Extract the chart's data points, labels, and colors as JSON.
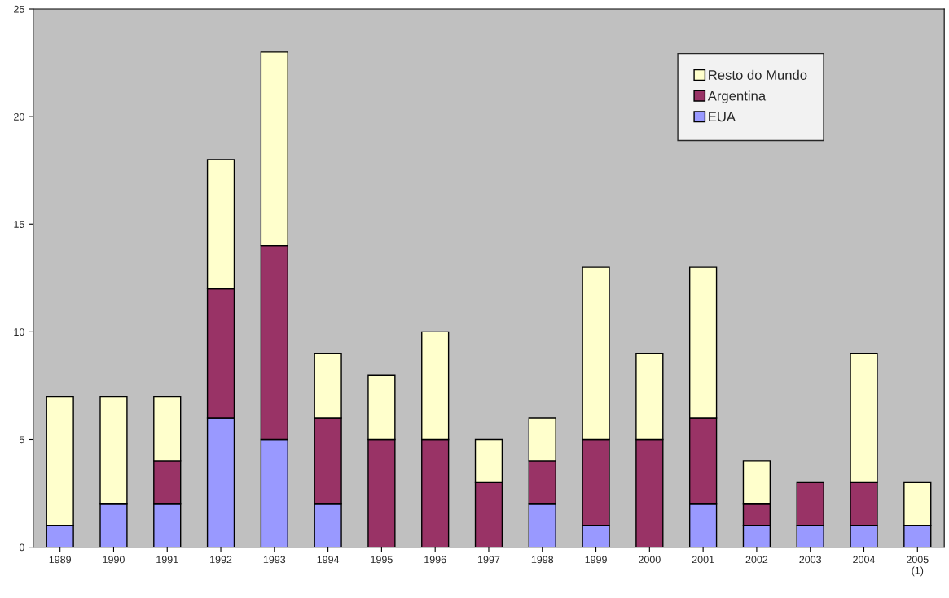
{
  "chart_data": {
    "type": "bar",
    "stacked": true,
    "categories": [
      "1989",
      "1990",
      "1991",
      "1992",
      "1993",
      "1994",
      "1995",
      "1996",
      "1997",
      "1998",
      "1999",
      "2000",
      "2001",
      "2002",
      "2003",
      "2004",
      "2005\n(1)"
    ],
    "series": [
      {
        "name": "EUA",
        "color": "#9999ff",
        "values": [
          1,
          2,
          2,
          6,
          5,
          2,
          0,
          0,
          0,
          2,
          1,
          0,
          2,
          1,
          1,
          1,
          1
        ]
      },
      {
        "name": "Argentina",
        "color": "#993366",
        "values": [
          0,
          0,
          2,
          6,
          9,
          4,
          5,
          5,
          3,
          2,
          4,
          5,
          4,
          1,
          2,
          2,
          0
        ]
      },
      {
        "name": "Resto do Mundo",
        "color": "#ffffcc",
        "values": [
          6,
          5,
          3,
          6,
          9,
          3,
          3,
          5,
          2,
          2,
          8,
          4,
          7,
          2,
          0,
          6,
          2
        ]
      }
    ],
    "ylim": [
      0,
      25
    ],
    "yticks": [
      0,
      5,
      10,
      15,
      20,
      25
    ],
    "grid": false,
    "legend": "top right"
  }
}
